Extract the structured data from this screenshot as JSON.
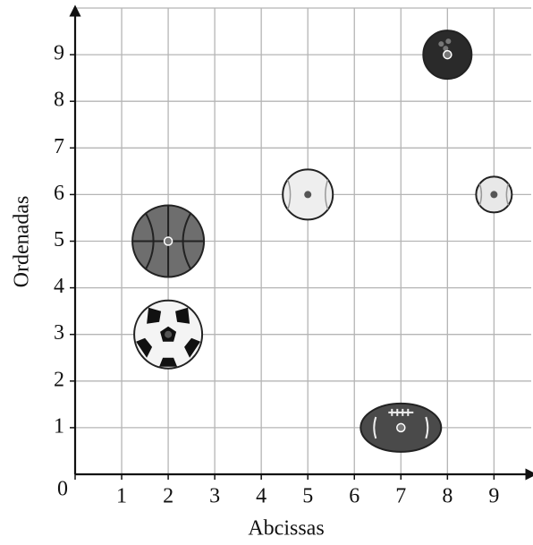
{
  "chart_data": {
    "type": "scatter",
    "xlabel": "Abcissas",
    "ylabel": "Ordenadas",
    "x": [
      2,
      2,
      5,
      9,
      8,
      7
    ],
    "values": [
      5,
      3,
      6,
      6,
      9,
      1
    ],
    "colors": [
      "#6e6e6e",
      "#f4f4f4",
      "#eeeeee",
      "#e8e8e8",
      "#2a2a2a",
      "#4a4a4a"
    ],
    "xlim": [
      0,
      9.8
    ],
    "ylim": [
      0,
      10
    ],
    "xticks": [
      0,
      1,
      2,
      3,
      4,
      5,
      6,
      7,
      8,
      9
    ],
    "yticks": [
      1,
      2,
      3,
      4,
      5,
      6,
      7,
      8,
      9
    ],
    "grid": true
  }
}
